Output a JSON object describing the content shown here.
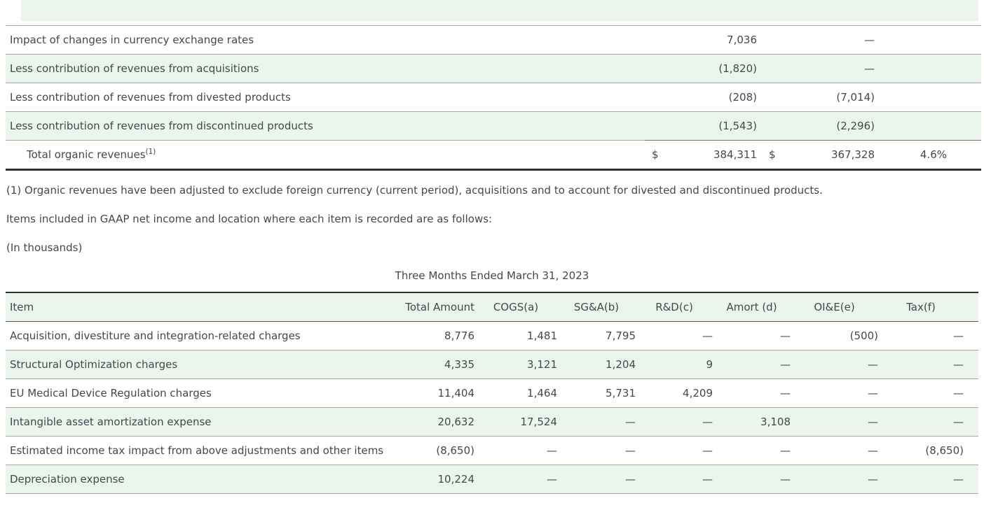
{
  "page": {
    "stripe_color": "#ecf5ec",
    "text_color": "#414950",
    "rule_color": "#a6a6a6",
    "heavy_rule_color": "#2f2f2f"
  },
  "table1": {
    "rows": [
      {
        "label": "Impact of changes in currency exchange rates",
        "col1": "7,036",
        "col2": "—",
        "col3": ""
      },
      {
        "label": "Less contribution of revenues from acquisitions",
        "col1": "(1,820)",
        "col2": "—",
        "col3": ""
      },
      {
        "label": "Less contribution of revenues from divested products",
        "col1": "(208)",
        "col2": "(7,014)",
        "col3": ""
      },
      {
        "label": "Less contribution of revenues from discontinued products",
        "col1": "(1,543)",
        "col2": "(2,296)",
        "col3": ""
      }
    ],
    "total": {
      "label": "Total organic revenues",
      "footnote_marker": "(1)",
      "currency1": "$",
      "value1": "384,311",
      "currency2": "$",
      "value2": "367,328",
      "percent": "4.6%"
    }
  },
  "notes": {
    "footnote": "(1) Organic revenues have been adjusted to exclude foreign currency (current period), acquisitions and to account for divested and discontinued products.",
    "intro": "Items included in GAAP net income and location where each item is recorded are as follows:",
    "units": "(In thousands)"
  },
  "table2": {
    "title": "Three Months Ended March 31, 2023",
    "headers": [
      "Item",
      "Total Amount",
      "COGS(a)",
      "SG&A(b)",
      "R&D(c)",
      "Amort (d)",
      "OI&E(e)",
      "Tax(f)"
    ],
    "rows": [
      {
        "item": "Acquisition, divestiture and integration-related charges",
        "values": [
          "8,776",
          "1,481",
          "7,795",
          "—",
          "—",
          "(500)",
          "—"
        ]
      },
      {
        "item": "Structural Optimization charges",
        "values": [
          "4,335",
          "3,121",
          "1,204",
          "9",
          "—",
          "—",
          "—"
        ]
      },
      {
        "item": "EU Medical Device Regulation charges",
        "values": [
          "11,404",
          "1,464",
          "5,731",
          "4,209",
          "—",
          "—",
          "—"
        ]
      },
      {
        "item": "Intangible asset amortization expense",
        "values": [
          "20,632",
          "17,524",
          "—",
          "—",
          "3,108",
          "—",
          "—"
        ]
      },
      {
        "item": "Estimated income tax impact from above adjustments and other items",
        "values": [
          "(8,650)",
          "—",
          "—",
          "—",
          "—",
          "—",
          "(8,650)"
        ]
      },
      {
        "item": "Depreciation expense",
        "values": [
          "10,224",
          "—",
          "—",
          "—",
          "—",
          "—",
          "—"
        ]
      }
    ]
  }
}
